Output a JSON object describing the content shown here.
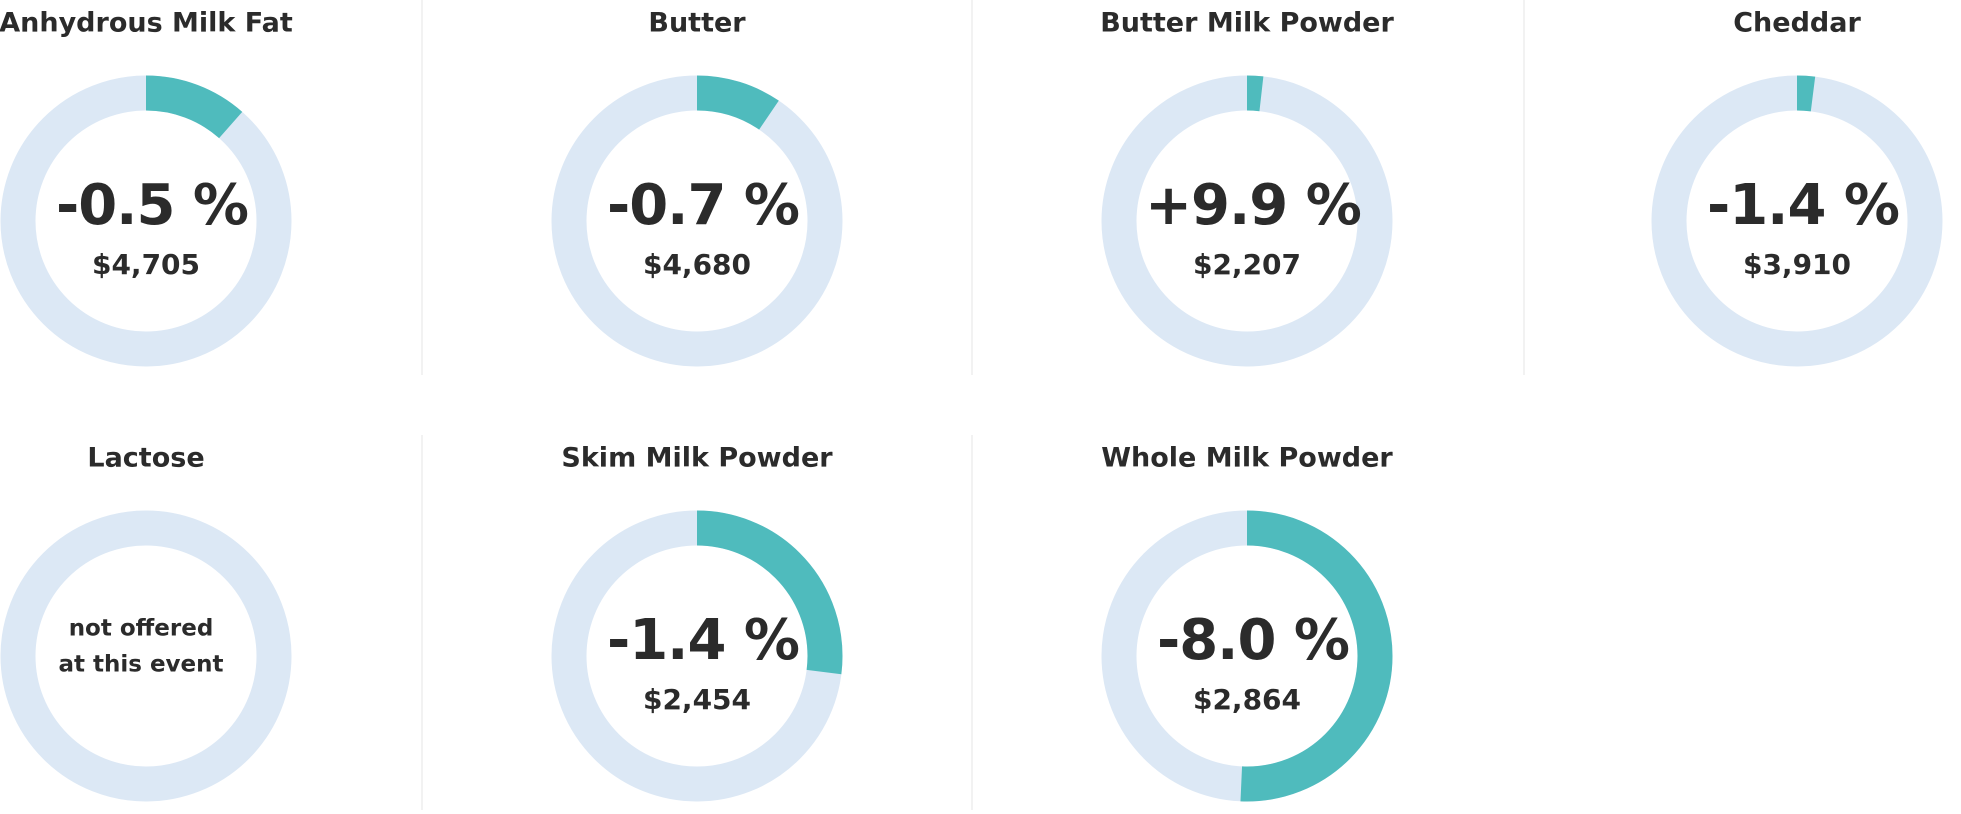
{
  "items": [
    {
      "title": "Anhydrous Milk Fat",
      "change": "-0.5 %",
      "price": "$4,705",
      "share": 11.5
    },
    {
      "title": "Butter",
      "change": "-0.7 %",
      "price": "$4,680",
      "share": 9.5
    },
    {
      "title": "Butter Milk Powder",
      "change": "+9.9 %",
      "price": "$2,207",
      "share": 1.8
    },
    {
      "title": "Cheddar",
      "change": "-1.4 %",
      "price": "$3,910",
      "share": 2
    },
    {
      "title": "Lactose",
      "note": [
        "not offered",
        "at this event"
      ],
      "share": null
    },
    {
      "title": "Skim Milk Powder",
      "change": "-1.4 %",
      "price": "$2,454",
      "share": 27
    },
    {
      "title": "Whole Milk Powder",
      "change": "-8.0 %",
      "price": "$2,864",
      "share": 50.7
    }
  ],
  "colors": {
    "ring": "#dce8f5",
    "arc": "#4fbbbd"
  }
}
